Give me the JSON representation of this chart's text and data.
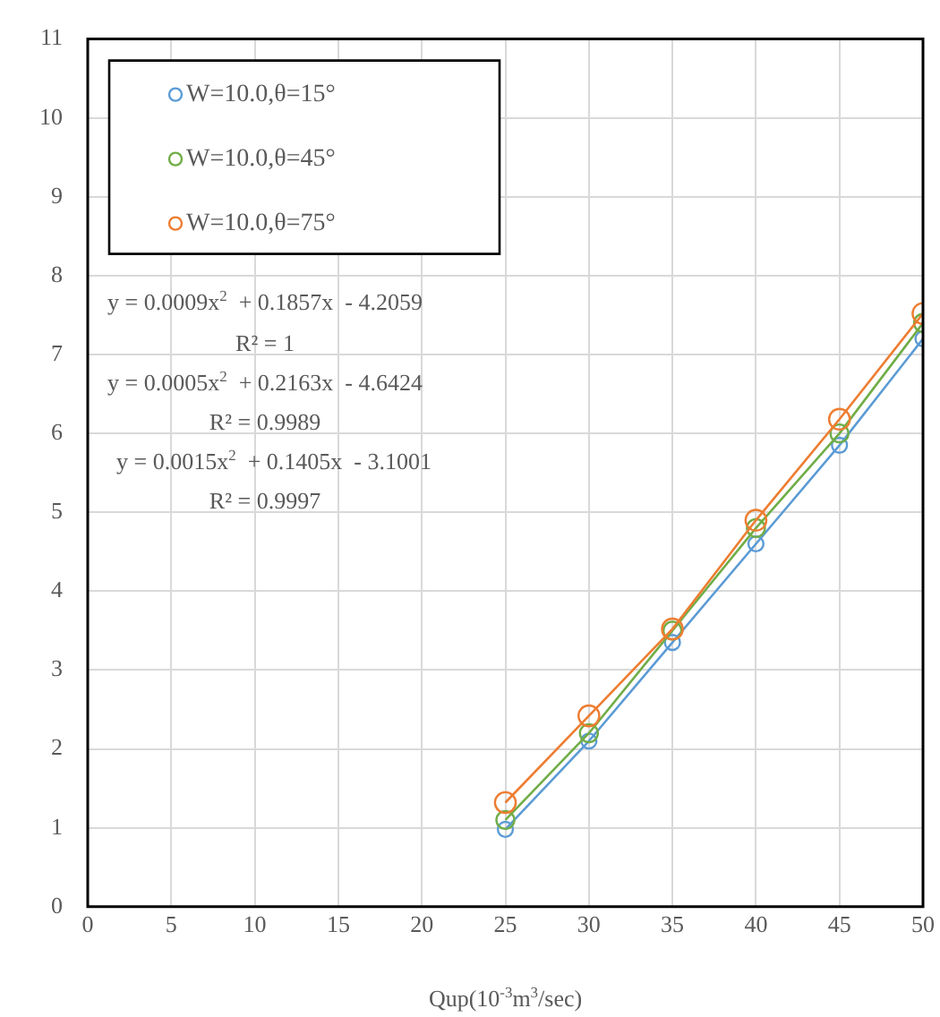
{
  "chart_data": {
    "type": "line",
    "xlabel": "Qup(10$^{-3}$m$^{3}$/sec)",
    "x": [
      25,
      30,
      35,
      40,
      45,
      50
    ],
    "series": [
      {
        "name": "W=10.0,θ=15°",
        "color": "#5b9bd5",
        "values": [
          0.98,
          2.1,
          3.35,
          4.6,
          5.85,
          7.2
        ]
      },
      {
        "name": "W=10.0,θ=45°",
        "color": "#70ad47",
        "values": [
          1.1,
          2.2,
          3.5,
          4.8,
          6.0,
          7.4
        ]
      },
      {
        "name": "W=10.0,θ=75°",
        "color": "#ed7d31",
        "values": [
          1.32,
          2.42,
          3.52,
          4.9,
          6.18,
          7.52
        ]
      }
    ],
    "xlim": [
      0,
      50
    ],
    "xticks": [
      0,
      5,
      10,
      15,
      20,
      25,
      30,
      35,
      40,
      45,
      50
    ],
    "ylim": [
      0,
      11
    ],
    "yticks": [
      0,
      1,
      2,
      3,
      4,
      5,
      6,
      7,
      8,
      9,
      10,
      11
    ],
    "grid": true,
    "legend": "top left",
    "marker": "circle",
    "line_style": "solid",
    "annotations": [
      "y = 0.0009x$^{2}$  + 0.1857x  - 4.2059",
      "R² = 1",
      "y = 0.0005x$^{2}$  + 0.2163x  - 4.6424",
      "R² = 0.9989",
      "y = 0.0015x$^{2}$  + 0.1405x  - 3.1001",
      "R² = 0.9997"
    ]
  }
}
